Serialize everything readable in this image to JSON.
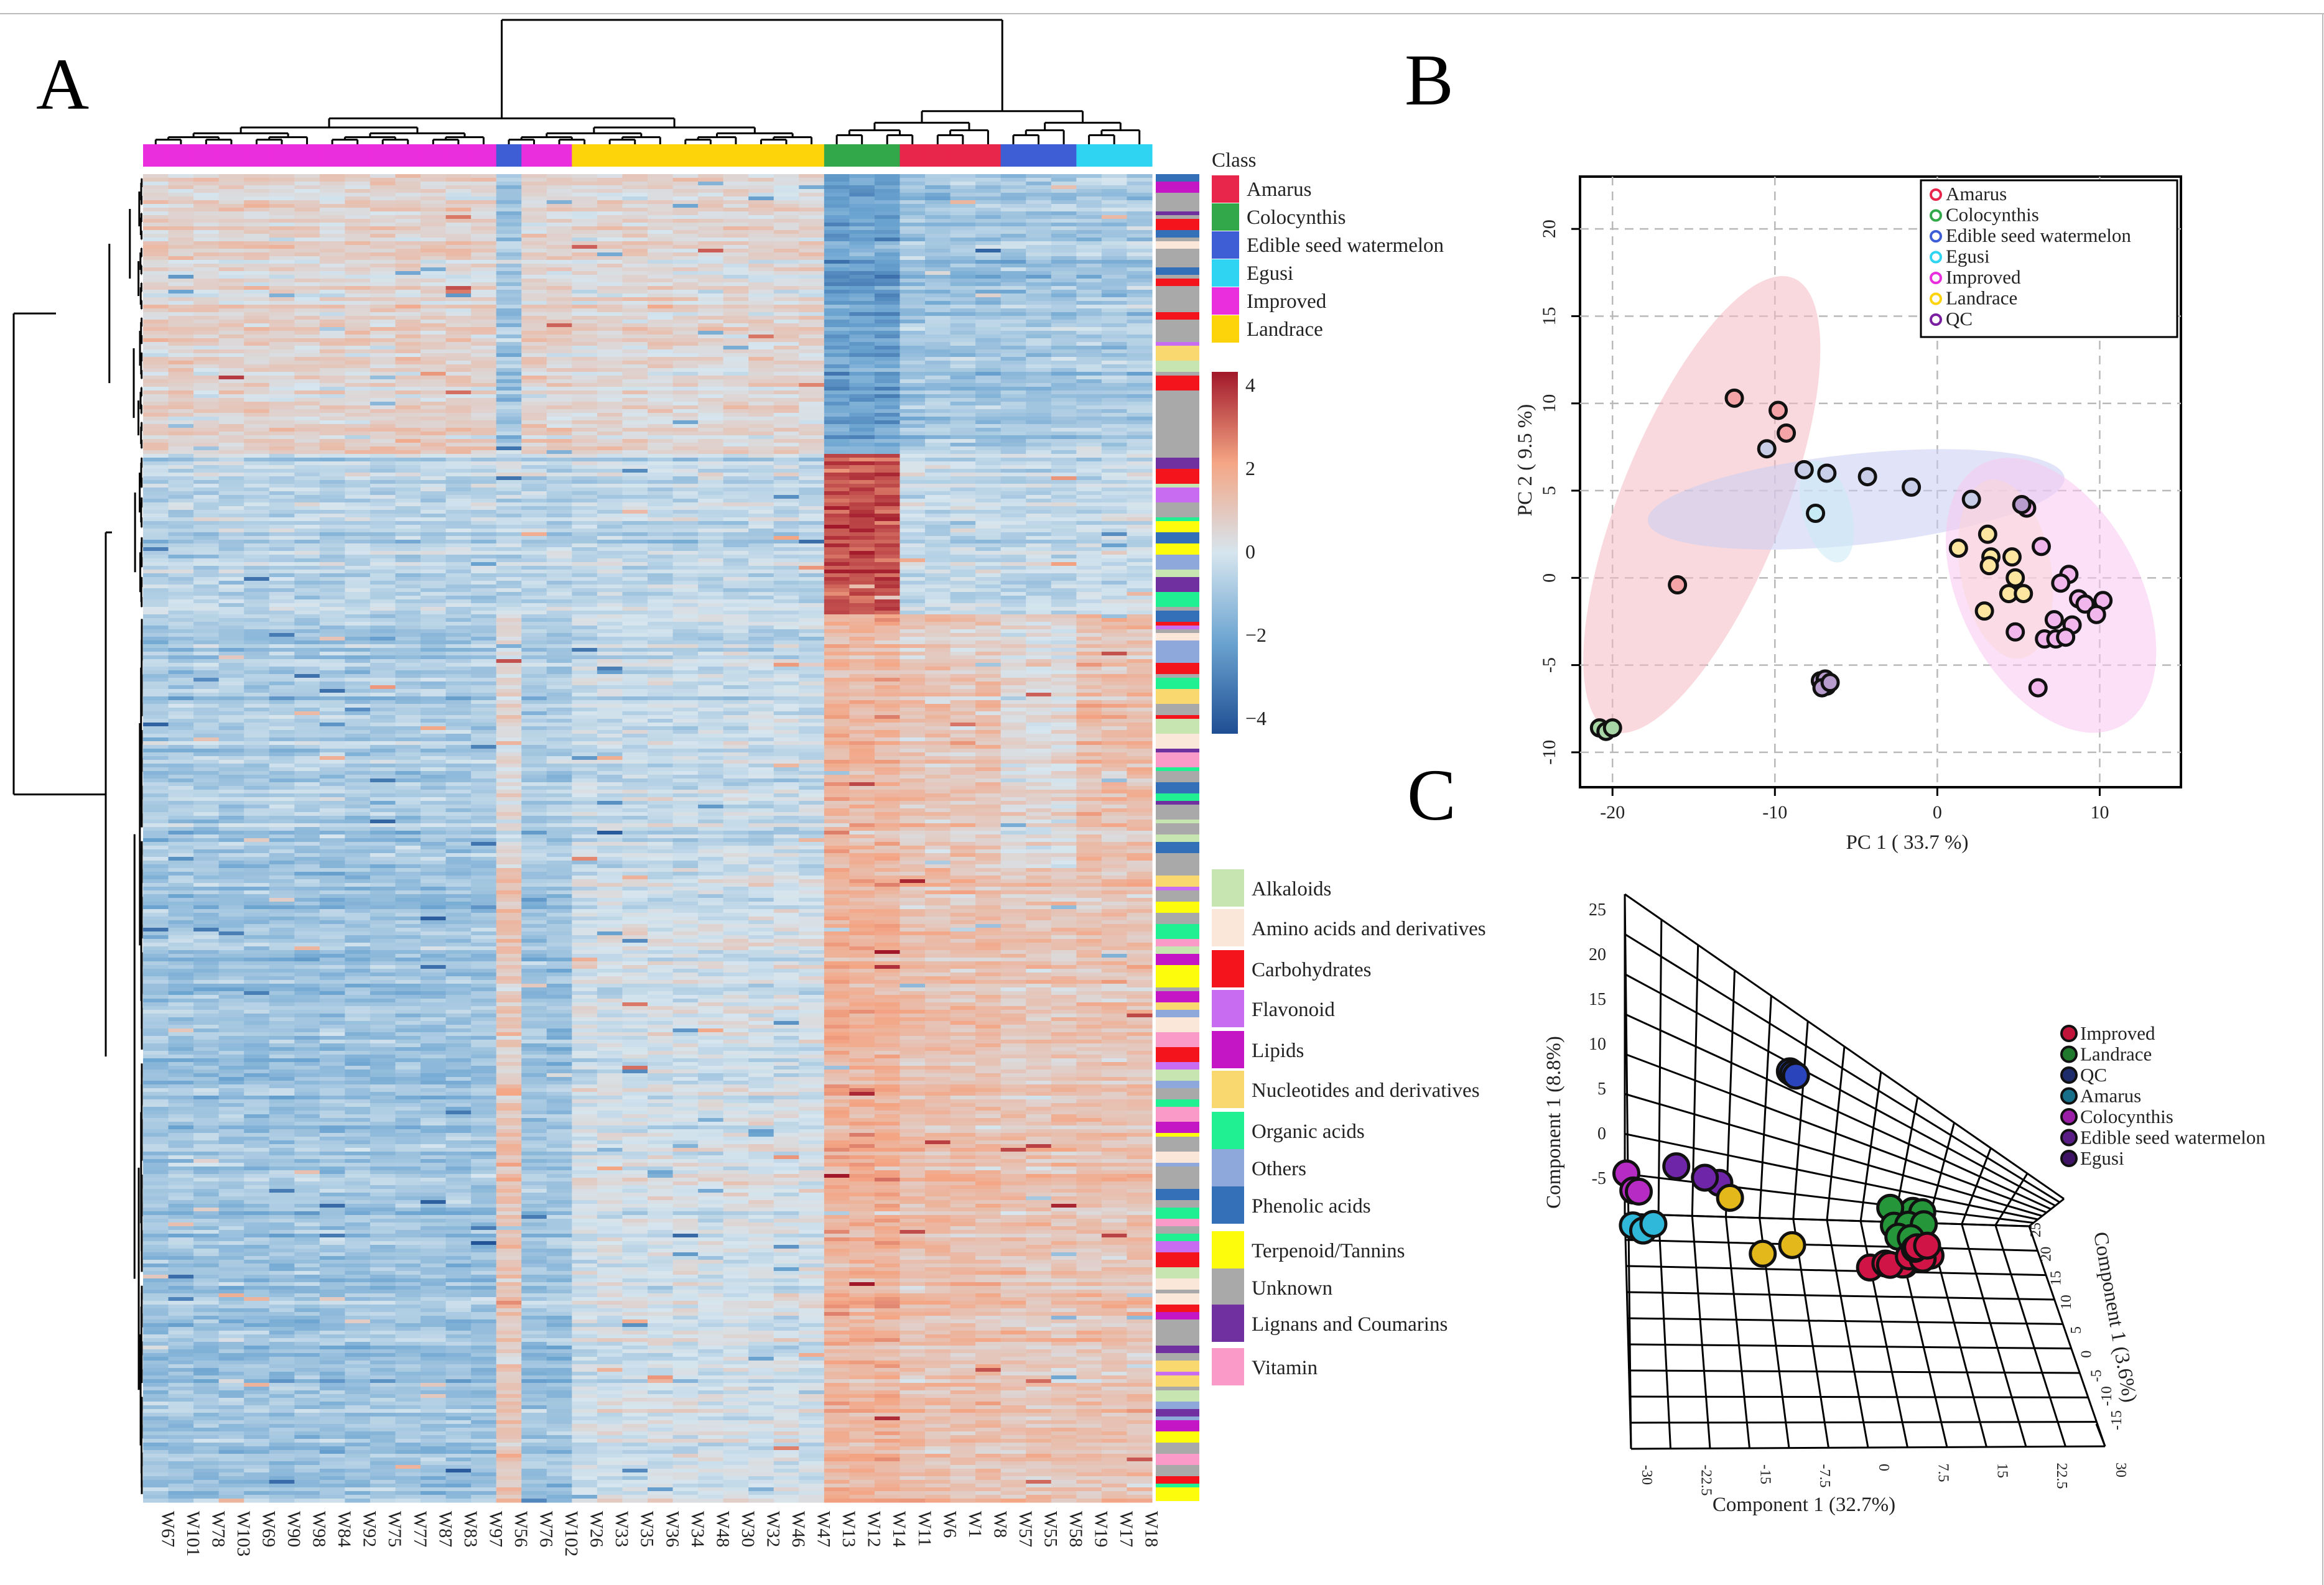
{
  "panels": {
    "a": "A",
    "b": "B",
    "c": "C"
  },
  "heatmap": {
    "samples": [
      "W67",
      "W101",
      "W78",
      "W103",
      "W69",
      "W90",
      "W98",
      "W84",
      "W92",
      "W75",
      "W77",
      "W87",
      "W83",
      "W97",
      "W56",
      "W76",
      "W102",
      "W26",
      "W33",
      "W35",
      "W36",
      "W34",
      "W48",
      "W30",
      "W32",
      "W46",
      "W47",
      "W13",
      "W12",
      "W14",
      "W11",
      "W6",
      "W1",
      "W8",
      "W57",
      "W55",
      "W58",
      "W19",
      "W17",
      "W18"
    ],
    "class_groups": [
      {
        "class": "Improved",
        "count": 14
      },
      {
        "class": "Edible seed watermelon",
        "count": 1
      },
      {
        "class": "Improved",
        "count": 2
      },
      {
        "class": "Landrace",
        "count": 10
      },
      {
        "class": "Colocynthis",
        "count": 3
      },
      {
        "class": "Amarus",
        "count": 4
      },
      {
        "class": "Edible seed watermelon",
        "count": 3
      },
      {
        "class": "Egusi",
        "count": 3
      }
    ],
    "class_legend_title": "Class",
    "class_legend": [
      {
        "label": "Amarus",
        "color": "#e8254b"
      },
      {
        "label": "Colocynthis",
        "color": "#33a84a"
      },
      {
        "label": "Edible seed watermelon",
        "color": "#3e5ed6"
      },
      {
        "label": "Egusi",
        "color": "#2fd4f2"
      },
      {
        "label": "Improved",
        "color": "#ea2ddd"
      },
      {
        "label": "Landrace",
        "color": "#fcd409"
      }
    ],
    "colorbar_ticks": [
      "4",
      "2",
      "0",
      "−2",
      "−4"
    ],
    "colorbar_range": [
      -4,
      4
    ],
    "colorbar_colors": [
      "#1f4e93",
      "#6aa3d0",
      "#d6e5ee",
      "#f4a584",
      "#a1182a"
    ],
    "category_legend": [
      {
        "label": "Alkaloids",
        "color": "#c6e5b0"
      },
      {
        "label": "Amino acids and derivatives",
        "color": "#fbe6da"
      },
      {
        "label": "Carbohydrates",
        "color": "#f4141b"
      },
      {
        "label": "Flavonoid",
        "color": "#c86cf2"
      },
      {
        "label": "Lipids",
        "color": "#c516c6"
      },
      {
        "label": "Nucleotides and derivatives",
        "color": "#f9d870"
      },
      {
        "label": "Organic acids",
        "color": "#21f092"
      },
      {
        "label": "Others",
        "color": "#8fa8dc"
      },
      {
        "label": "Phenolic acids",
        "color": "#3470b8"
      },
      {
        "label": "Terpenoid/Tannins",
        "color": "#fcfc0c"
      },
      {
        "label": "Unknown",
        "color": "#a9a9a9"
      },
      {
        "label": "Lignans and Coumarins",
        "color": "#7030a0"
      },
      {
        "label": "Vitamin",
        "color": "#fa9ac8"
      }
    ]
  },
  "chart_data": [
    {
      "type": "heatmap",
      "title": "",
      "columns": [
        "W67",
        "W101",
        "W78",
        "W103",
        "W69",
        "W90",
        "W98",
        "W84",
        "W92",
        "W75",
        "W77",
        "W87",
        "W83",
        "W97",
        "W56",
        "W76",
        "W102",
        "W26",
        "W33",
        "W35",
        "W36",
        "W34",
        "W48",
        "W30",
        "W32",
        "W46",
        "W47",
        "W13",
        "W12",
        "W14",
        "W11",
        "W6",
        "W1",
        "W8",
        "W57",
        "W55",
        "W58",
        "W19",
        "W17",
        "W18"
      ],
      "value_range": [
        -4,
        4
      ],
      "row_blocks": [
        {
          "rows": "1-90",
          "profile": "high in Improved/Landrace, low in Colocynthis/Amarus/Egusi",
          "Improved": 0.6,
          "Landrace": 0.5,
          "Colocynthis": -2.0,
          "Amarus": -1.0,
          "Edible seed watermelon": -1.0,
          "Egusi": -0.8
        },
        {
          "rows": "91-140",
          "profile": "high in Colocynthis only",
          "Improved": -0.5,
          "Landrace": -0.4,
          "Colocynthis": 3.2,
          "Amarus": -0.3,
          "Edible seed watermelon": -0.4,
          "Egusi": -0.2
        },
        {
          "rows": "141-220",
          "profile": "high in Colocynthis/Amarus/Egusi",
          "Improved": -0.8,
          "Landrace": -0.3,
          "Colocynthis": 1.5,
          "Amarus": 1.0,
          "Edible seed watermelon": 0.4,
          "Egusi": 1.2
        },
        {
          "rows": "221-420",
          "profile": "low in Improved, high in wild types",
          "Improved": -1.0,
          "Landrace": 0.0,
          "Colocynthis": 1.6,
          "Amarus": 1.2,
          "Edible seed watermelon": 1.0,
          "Egusi": 1.1
        }
      ]
    },
    {
      "type": "scatter",
      "title": "",
      "xlabel": "PC 1 ( 33.7 %)",
      "ylabel": "PC 2 ( 9.5 %)",
      "xlim": [
        -22,
        15
      ],
      "ylim": [
        -12,
        23
      ],
      "xticks": [
        -20,
        -10,
        0,
        10
      ],
      "yticks": [
        20,
        15,
        10,
        5,
        0,
        -5,
        -10
      ],
      "xtick_labels": [
        "-20",
        "-10",
        "0",
        "10"
      ],
      "ytick_labels": [
        "20",
        "15",
        "10",
        "5",
        "0",
        "-5",
        "-10"
      ],
      "legend": [
        {
          "label": "Amarus",
          "color": "#e8254b"
        },
        {
          "label": "Colocynthis",
          "color": "#33a84a"
        },
        {
          "label": "Edible seed watermelon",
          "color": "#3e5ed6"
        },
        {
          "label": "Egusi",
          "color": "#2fd4f2"
        },
        {
          "label": "Improved",
          "color": "#ea2ddd"
        },
        {
          "label": "Landrace",
          "color": "#fcd409"
        },
        {
          "label": "QC",
          "color": "#7a1fa2"
        }
      ],
      "ellipses": [
        {
          "group": "Amarus",
          "cx": -14.5,
          "cy": 4.2,
          "rx": 5.0,
          "ry": 14.0,
          "angle": 22,
          "color": "#f4b9c2"
        },
        {
          "group": "Edible seed watermelon",
          "cx": -5,
          "cy": 4.5,
          "rx": 2.8,
          "ry": 12.0,
          "angle": 84,
          "color": "#c9cef2"
        },
        {
          "group": "Egusi",
          "cx": -6.8,
          "cy": 3.8,
          "rx": 1.5,
          "ry": 3.0,
          "angle": -15,
          "color": "#cbeaf6"
        },
        {
          "group": "Landrace",
          "cx": 4.2,
          "cy": 0.5,
          "rx": 2.8,
          "ry": 5.2,
          "angle": -10,
          "color": "#fde9b8"
        },
        {
          "group": "Improved",
          "cx": 7.0,
          "cy": -1.0,
          "rx": 5.5,
          "ry": 8.5,
          "angle": -28,
          "color": "#f7c7f1"
        }
      ],
      "series": [
        {
          "name": "Amarus",
          "color": "#f4a4a6",
          "points": [
            [
              -12.5,
              10.3
            ],
            [
              -9.8,
              9.6
            ],
            [
              -9.3,
              8.3
            ],
            [
              -16.0,
              -0.4
            ]
          ]
        },
        {
          "name": "Colocynthis",
          "color": "#a8d6a6",
          "points": [
            [
              -20.8,
              -8.6
            ],
            [
              -20.4,
              -8.8
            ],
            [
              -20.0,
              -8.6
            ]
          ]
        },
        {
          "name": "Edible seed watermelon",
          "color": "#c8cde8",
          "points": [
            [
              -10.5,
              7.4
            ],
            [
              -8.2,
              6.2
            ],
            [
              -6.8,
              6.0
            ],
            [
              -4.3,
              5.8
            ],
            [
              -1.6,
              5.2
            ],
            [
              2.1,
              4.5
            ]
          ]
        },
        {
          "name": "Egusi",
          "color": "#c6ebf4",
          "points": [
            [
              -7.5,
              3.7
            ]
          ]
        },
        {
          "name": "Improved",
          "color": "#f1b6ec",
          "points": [
            [
              6.4,
              1.8
            ],
            [
              8.1,
              0.2
            ],
            [
              7.6,
              -0.3
            ],
            [
              8.7,
              -1.2
            ],
            [
              9.1,
              -1.5
            ],
            [
              10.2,
              -1.3
            ],
            [
              9.8,
              -2.1
            ],
            [
              7.2,
              -2.4
            ],
            [
              8.3,
              -2.7
            ],
            [
              6.6,
              -3.5
            ],
            [
              7.3,
              -3.5
            ],
            [
              7.9,
              -3.4
            ],
            [
              6.2,
              -6.3
            ],
            [
              4.8,
              -3.1
            ],
            [
              5.5,
              4.0
            ]
          ]
        },
        {
          "name": "Landrace",
          "color": "#fde6a0",
          "points": [
            [
              1.3,
              1.7
            ],
            [
              3.1,
              2.5
            ],
            [
              3.3,
              1.2
            ],
            [
              3.2,
              0.7
            ],
            [
              4.6,
              1.2
            ],
            [
              4.8,
              0.0
            ],
            [
              4.4,
              -0.9
            ],
            [
              5.3,
              -0.9
            ],
            [
              2.9,
              -1.9
            ]
          ]
        },
        {
          "name": "QC",
          "color": "#b79ccd",
          "points": [
            [
              -7.2,
              -5.9
            ],
            [
              -6.9,
              -5.8
            ],
            [
              -6.8,
              -6.2
            ],
            [
              -7.1,
              -6.3
            ],
            [
              -6.6,
              -6.0
            ],
            [
              5.2,
              4.2
            ]
          ]
        }
      ]
    },
    {
      "type": "scatter",
      "title": "",
      "xlabel": "Component 1 (32.7%)",
      "ylabel": "Component 1 (8.8%)",
      "zlabel": "Component 1 (3.6%)",
      "xticks": [
        "-30",
        "-22.5",
        "-15",
        "-7.5",
        "0",
        "7.5",
        "15",
        "22.5",
        "30"
      ],
      "yticks": [
        "25",
        "20",
        "15",
        "10",
        "5",
        "0",
        "-5"
      ],
      "zticks": [
        "-15",
        "-10",
        "-5",
        "0",
        "5",
        "10",
        "15",
        "20",
        "25"
      ],
      "legend": [
        {
          "label": "Improved",
          "color": "#c0143b"
        },
        {
          "label": "Landrace",
          "color": "#1f7a2e"
        },
        {
          "label": "QC",
          "color": "#1f2c6b"
        },
        {
          "label": "Amarus",
          "color": "#176f8a"
        },
        {
          "label": "Colocynthis",
          "color": "#9b1fa6"
        },
        {
          "label": "Edible seed watermelon",
          "color": "#5a1d85"
        },
        {
          "label": "Egusi",
          "color": "#3f1266"
        }
      ],
      "series": [
        {
          "name": "Improved",
          "color": "#d01446",
          "points": [
            [
              3.1,
              1.6,
              4.8
            ],
            [
              8.0,
              1.5,
              4.0
            ],
            [
              10.0,
              1.5,
              2.6
            ],
            [
              12.0,
              1.0,
              1.5
            ],
            [
              11.0,
              0.4,
              1.0
            ],
            [
              9.0,
              0.9,
              1.5
            ],
            [
              10.0,
              1.1,
              0.5
            ],
            [
              10.5,
              0.7,
              -0.5
            ],
            [
              12.0,
              0.6,
              -1.0
            ],
            [
              6.3,
              0.3,
              2.0
            ],
            [
              5.5,
              1.0,
              3.0
            ],
            [
              7.8,
              1.2,
              3.5
            ]
          ]
        },
        {
          "name": "Landrace",
          "color": "#26963a",
          "points": [
            [
              6.0,
              7.2,
              4.0
            ],
            [
              7.5,
              6.6,
              5.0
            ],
            [
              9.0,
              7.2,
              4.5
            ],
            [
              10.4,
              6.8,
              4.0
            ],
            [
              6.5,
              5.4,
              4.0
            ],
            [
              8.5,
              5.4,
              3.8
            ],
            [
              10.7,
              5.3,
              3.5
            ],
            [
              7.2,
              4.0,
              3.5
            ],
            [
              9.0,
              3.6,
              3.0
            ]
          ]
        },
        {
          "name": "QC",
          "color": "#2a45bb",
          "points": [
            [
              -6.5,
              14.5,
              -7.0
            ],
            [
              -6.0,
              14.0,
              -7.5
            ],
            [
              -5.5,
              13.5,
              -8.0
            ]
          ]
        },
        {
          "name": "Amarus",
          "color": "#2fb8da",
          "points": [
            [
              -29.0,
              -2.0,
              -8.0
            ],
            [
              -27.5,
              -2.8,
              -8.5
            ],
            [
              -26.0,
              -2.4,
              -9.0
            ]
          ]
        },
        {
          "name": "Colocynthis",
          "color": "#b52bc3",
          "points": [
            [
              -30.0,
              5.0,
              -5.0
            ],
            [
              -29.0,
              3.0,
              -5.5
            ],
            [
              -28.2,
              2.6,
              -6.0
            ]
          ]
        },
        {
          "name": "Edible seed watermelon",
          "color": "#6f25a8",
          "points": [
            [
              -23.0,
              7.0,
              -3.0
            ],
            [
              -19.0,
              6.2,
              -2.5
            ],
            [
              -17.0,
              6.0,
              -2.0
            ]
          ]
        },
        {
          "name": "Egusi",
          "color": "#e2b81a",
          "points": [
            [
              -15.5,
              4.5,
              -2.0
            ],
            [
              -7.0,
              1.0,
              0.0
            ],
            [
              -11.0,
              -0.5,
              -1.0
            ]
          ]
        }
      ]
    }
  ]
}
